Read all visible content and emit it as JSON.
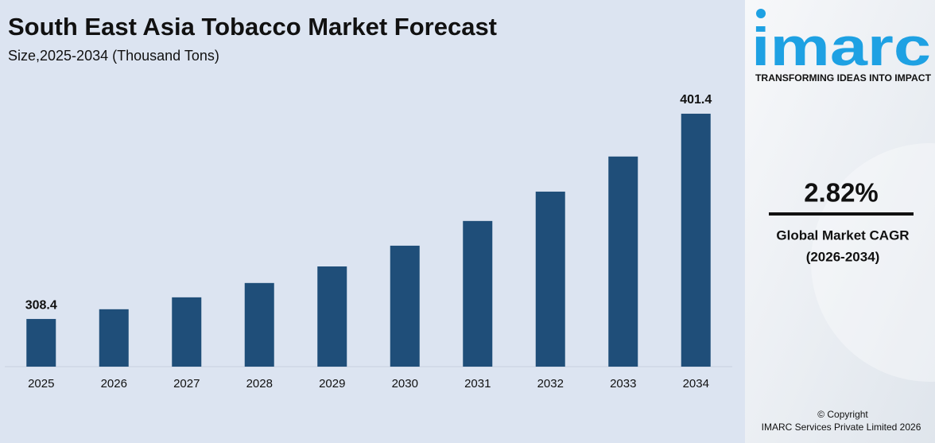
{
  "chart_data": {
    "type": "bar",
    "title": "South East Asia Tobacco Market Forecast",
    "subtitle": "Size,2025-2034 (Thousand Tons)",
    "categories": [
      "2025",
      "2026",
      "2027",
      "2028",
      "2029",
      "2030",
      "2031",
      "2032",
      "2033",
      "2034"
    ],
    "values": [
      308.4,
      312.8,
      318.2,
      324.7,
      332.2,
      341.6,
      352.8,
      366.1,
      382.0,
      401.4
    ],
    "value_labels": [
      "308.4",
      null,
      null,
      null,
      null,
      null,
      null,
      null,
      null,
      "401.4"
    ],
    "color": "#1f4e79",
    "ylim": [
      286.8,
      414
    ]
  },
  "sidebar": {
    "logo": "imarc",
    "tagline": "TRANSFORMING IDEAS INTO IMPACT",
    "cagr_value": "2.82%",
    "cagr_label": "Global Market CAGR",
    "cagr_period": "(2026-2034)",
    "copyright": "© Copyright",
    "company": "IMARC Services Private Limited 2026"
  }
}
